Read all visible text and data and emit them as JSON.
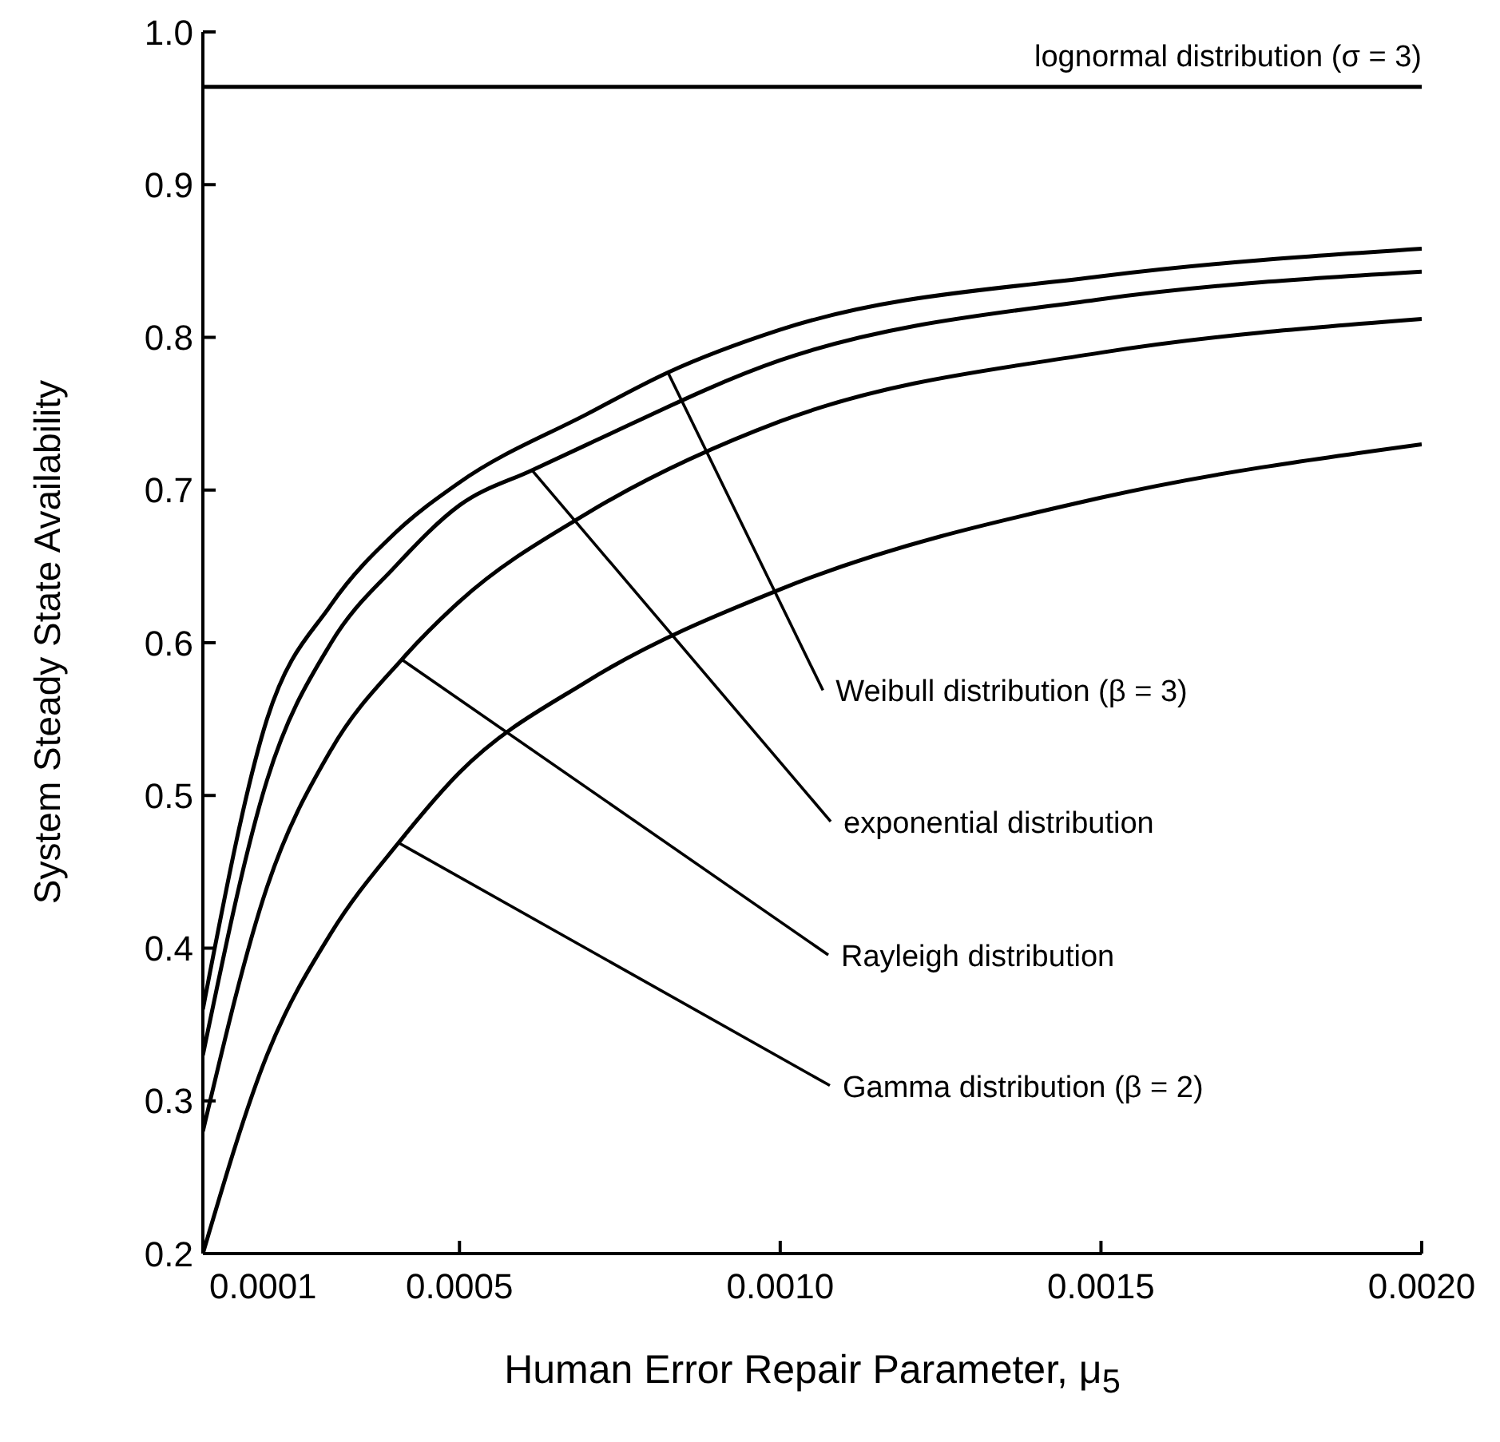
{
  "chart_data": {
    "type": "line",
    "xlabel": "Human Error Repair Parameter, μ$_{5}$",
    "ylabel": "System Steady State Availability",
    "xlim": [
      0.0001,
      0.002
    ],
    "xticks": [
      {
        "value": 0.0001,
        "label": "0.0001"
      },
      {
        "value": 0.0005,
        "label": "0.0005"
      },
      {
        "value": 0.001,
        "label": "0.0010"
      },
      {
        "value": 0.0015,
        "label": "0.0015"
      },
      {
        "value": 0.002,
        "label": "0.0020"
      }
    ],
    "ylim": [
      0.2,
      1
    ],
    "yticks": [
      0.2,
      0.3,
      0.4,
      0.5,
      0.6,
      0.7,
      0.8,
      0.9,
      {
        "value": 1,
        "label": "1.0"
      }
    ],
    "grid": false,
    "marker": "none",
    "line_style": "solid",
    "annotations": [
      {
        "text": "Weibull distribution (β = 3)",
        "x": 0.000825,
        "y": 0.777
      },
      {
        "text": "exponential distribution",
        "x": 0.000613,
        "y": 0.713
      },
      {
        "text": "Rayleigh distribution",
        "x": 0.00041,
        "y": 0.589
      },
      {
        "text": "Gamma distribution (β = 2)",
        "x": 0.000405,
        "y": 0.469
      }
    ],
    "series": [
      {
        "name": "lognormal distribution (σ = 3)",
        "color": "#000000",
        "x": [
          0.0001,
          0.002
        ],
        "values": [
          0.964,
          0.964
        ]
      },
      {
        "color": "#000000",
        "x": [
          0.0001,
          0.0002,
          0.0003,
          0.0004,
          0.0005,
          0.0007,
          0.000825,
          0.001,
          0.0015,
          0.002
        ],
        "values": [
          0.36,
          0.55,
          0.625,
          0.672,
          0.705,
          0.75,
          0.777,
          0.805,
          0.84,
          0.858
        ]
      },
      {
        "color": "#000000",
        "x": [
          0.0001,
          0.0002,
          0.0003,
          0.0004,
          0.0005,
          0.000613,
          0.0007,
          0.001,
          0.0015,
          0.002
        ],
        "values": [
          0.33,
          0.51,
          0.6,
          0.65,
          0.69,
          0.713,
          0.73,
          0.785,
          0.825,
          0.843
        ]
      },
      {
        "color": "#000000",
        "x": [
          0.0001,
          0.0002,
          0.0003,
          0.00041,
          0.0005,
          0.0007,
          0.001,
          0.0015,
          0.002
        ],
        "values": [
          0.28,
          0.44,
          0.53,
          0.589,
          0.627,
          0.685,
          0.745,
          0.79,
          0.812
        ]
      },
      {
        "color": "#000000",
        "x": [
          0.0001,
          0.0002,
          0.0003,
          0.000405,
          0.0005,
          0.0007,
          0.001,
          0.0015,
          0.002
        ],
        "values": [
          0.2,
          0.33,
          0.41,
          0.469,
          0.515,
          0.575,
          0.635,
          0.695,
          0.73
        ]
      }
    ]
  }
}
